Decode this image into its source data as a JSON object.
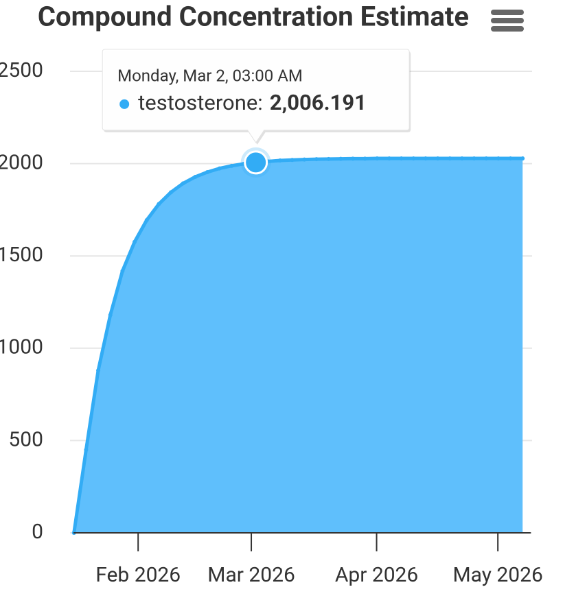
{
  "chart_data": {
    "type": "area",
    "title": "Compound Concentration Estimate",
    "x": [
      "2026-01-16T03:00",
      "2026-01-19T03:00",
      "2026-01-22T03:00",
      "2026-01-25T03:00",
      "2026-01-28T03:00",
      "2026-01-31T03:00",
      "2026-02-03T03:00",
      "2026-02-06T03:00",
      "2026-02-09T03:00",
      "2026-02-12T03:00",
      "2026-02-15T03:00",
      "2026-02-18T03:00",
      "2026-02-21T03:00",
      "2026-02-24T03:00",
      "2026-02-27T03:00",
      "2026-03-02T03:00",
      "2026-03-05T03:00",
      "2026-03-08T03:00",
      "2026-03-11T03:00",
      "2026-03-14T03:00",
      "2026-03-17T03:00",
      "2026-03-20T03:00",
      "2026-03-23T03:00",
      "2026-03-26T03:00",
      "2026-03-29T03:00",
      "2026-04-01T03:00",
      "2026-04-04T03:00",
      "2026-04-07T03:00",
      "2026-04-10T03:00",
      "2026-04-13T03:00",
      "2026-04-16T03:00",
      "2026-04-19T03:00",
      "2026-04-22T03:00",
      "2026-04-25T03:00",
      "2026-04-28T03:00",
      "2026-05-01T03:00",
      "2026-05-04T03:00",
      "2026-05-07T03:00"
    ],
    "series": [
      {
        "name": "testosterone",
        "color": "#32acf5",
        "fill": "#5fbffc",
        "values": [
          0,
          450,
          880,
          1180,
          1418,
          1576,
          1694,
          1781,
          1845,
          1893,
          1928,
          1954,
          1974,
          1988,
          1999,
          2006.191,
          2012,
          2017,
          2020,
          2022,
          2024,
          2025,
          2026,
          2027,
          2027,
          2028,
          2028,
          2028,
          2028,
          2028,
          2028,
          2028,
          2028,
          2028,
          2028,
          2028,
          2028,
          2028
        ],
        "value_labels": [
          null,
          null,
          null,
          null,
          null,
          null,
          null,
          null,
          null,
          null,
          null,
          null,
          null,
          null,
          null,
          "2,006.191",
          null,
          null,
          null,
          null,
          null,
          null,
          null,
          null,
          null,
          null,
          null,
          null,
          null,
          null,
          null,
          null,
          null,
          null,
          null,
          null,
          null,
          null
        ]
      }
    ],
    "tooltip": {
      "header": "Monday, Mar 2, 03:00 AM",
      "separator": ":"
    },
    "xlim": [
      "2026-01-16T00:00",
      "2026-05-09T03:00"
    ],
    "xticks": [
      {
        "value": "2026-02-01T00:00",
        "label": "Feb 2026"
      },
      {
        "value": "2026-03-01T00:00",
        "label": "Mar 2026"
      },
      {
        "value": "2026-04-01T00:00",
        "label": "Apr 2026"
      },
      {
        "value": "2026-05-01T00:00",
        "label": "May 2026"
      }
    ],
    "ylim": [
      0,
      2500
    ],
    "yticks": [
      0,
      500,
      1000,
      1500,
      2000,
      2500
    ],
    "grid": true
  }
}
